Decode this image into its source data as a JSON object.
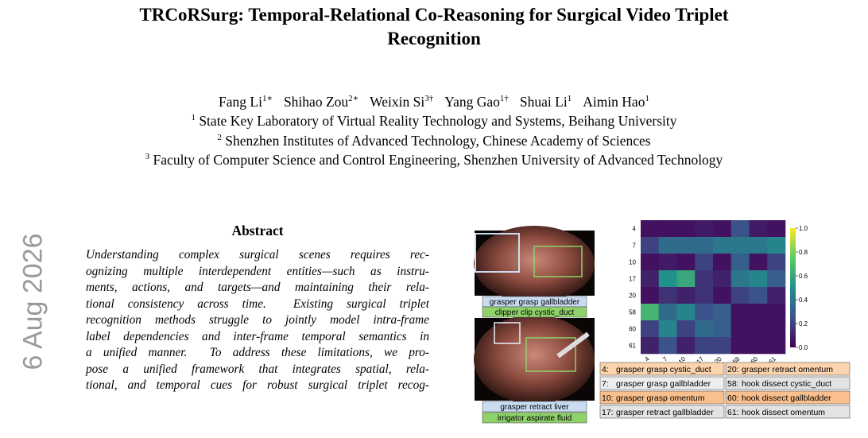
{
  "title": [
    "TRCoRSurg: Temporal-Relational Co-Reasoning for Surgical Video Triplet",
    "Recognition"
  ],
  "authors": [
    {
      "name": "Fang Li",
      "mark": "1∗"
    },
    {
      "name": "Shihao Zou",
      "mark": "2∗"
    },
    {
      "name": "Weixin Si",
      "mark": "3†"
    },
    {
      "name": "Yang Gao",
      "mark": "1†"
    },
    {
      "name": "Shuai Li",
      "mark": "1"
    },
    {
      "name": "Aimin Hao",
      "mark": "1"
    }
  ],
  "affiliations": [
    {
      "mark": "1",
      "text": "State Key Laboratory of Virtual Reality Technology and Systems, Beihang University"
    },
    {
      "mark": "2",
      "text": "Shenzhen Institutes of Advanced Technology, Chinese Academy of Sciences"
    },
    {
      "mark": "3",
      "text": "Faculty of Computer Science and Control Engineering, Shenzhen University of Advanced Technology"
    }
  ],
  "side_stamp": "6 Aug 2026",
  "abstract": {
    "heading": "Abstract",
    "lines": [
      "Understanding complex surgical scenes requires rec-",
      "ognizing multiple interdependent entities—such as instru-",
      "ments, actions, and targets—and maintaining their rela-",
      "tional consistency across time.  Existing surgical triplet",
      "recognition methods struggle to jointly model intra-frame",
      "label dependencies and inter-frame temporal semantics in",
      "a unified manner.  To address these limitations, we pro-",
      "pose a unified framework that integrates spatial, rela-",
      "tional, and temporal cues for robust surgical triplet recog-"
    ]
  },
  "figure": {
    "frames": [
      {
        "labels": [
          {
            "text": "grasper grasp gallbladder",
            "color": "#c9dcf2"
          },
          {
            "text": "clipper clip cystic_duct",
            "color": "#8fd16a"
          }
        ]
      },
      {
        "labels": [
          {
            "text": "grasper retract liver",
            "color": "#c9dcf2"
          },
          {
            "text": "irrigator aspirate fluid",
            "color": "#8fd16a"
          }
        ]
      }
    ],
    "heatmap": {
      "type": "heatmap",
      "categories": [
        "4",
        "7",
        "10",
        "17",
        "20",
        "58",
        "60",
        "61"
      ],
      "values": [
        [
          0.05,
          0.05,
          0.05,
          0.08,
          0.05,
          0.25,
          0.08,
          0.05
        ],
        [
          0.2,
          0.35,
          0.35,
          0.35,
          0.4,
          0.4,
          0.4,
          0.45
        ],
        [
          0.05,
          0.08,
          0.05,
          0.2,
          0.05,
          0.3,
          0.05,
          0.2
        ],
        [
          0.1,
          0.5,
          0.6,
          0.15,
          0.1,
          0.4,
          0.45,
          0.3
        ],
        [
          0.05,
          0.15,
          0.1,
          0.15,
          0.05,
          0.2,
          0.25,
          0.1
        ],
        [
          0.65,
          0.35,
          0.45,
          0.25,
          0.3,
          0.05,
          0.05,
          0.05
        ],
        [
          0.2,
          0.45,
          0.2,
          0.35,
          0.3,
          0.05,
          0.05,
          0.05
        ],
        [
          0.1,
          0.25,
          0.1,
          0.2,
          0.2,
          0.05,
          0.05,
          0.05
        ]
      ],
      "clim": [
        0,
        1
      ],
      "cticks": [
        {
          "value": 0,
          "label": "0.0"
        },
        0.2,
        0.4,
        0.6,
        0.8,
        {
          "value": 1,
          "label": "1.0"
        }
      ],
      "colormap": "viridis"
    },
    "legend": [
      {
        "key": "4:",
        "text": "grasper grasp cystic_duct",
        "color": "#fbd3ad"
      },
      {
        "key": "20:",
        "text": "grasper retract omentum",
        "color": "#fbd3ad"
      },
      {
        "key": "7:",
        "text": "grasper grasp gallbladder",
        "color": "#eeeeee"
      },
      {
        "key": "58:",
        "text": "hook dissect cystic_duct",
        "color": "#e3e3e3"
      },
      {
        "key": "10:",
        "text": "grasper grasp omentum",
        "color": "#f9c08d"
      },
      {
        "key": "60:",
        "text": "hook dissect gallbladder",
        "color": "#f9c08d"
      },
      {
        "key": "17:",
        "text": "grasper retract gallbladder",
        "color": "#e3e3e3"
      },
      {
        "key": "61:",
        "text": "hook dissect omentum",
        "color": "#e3e3e3"
      }
    ]
  }
}
